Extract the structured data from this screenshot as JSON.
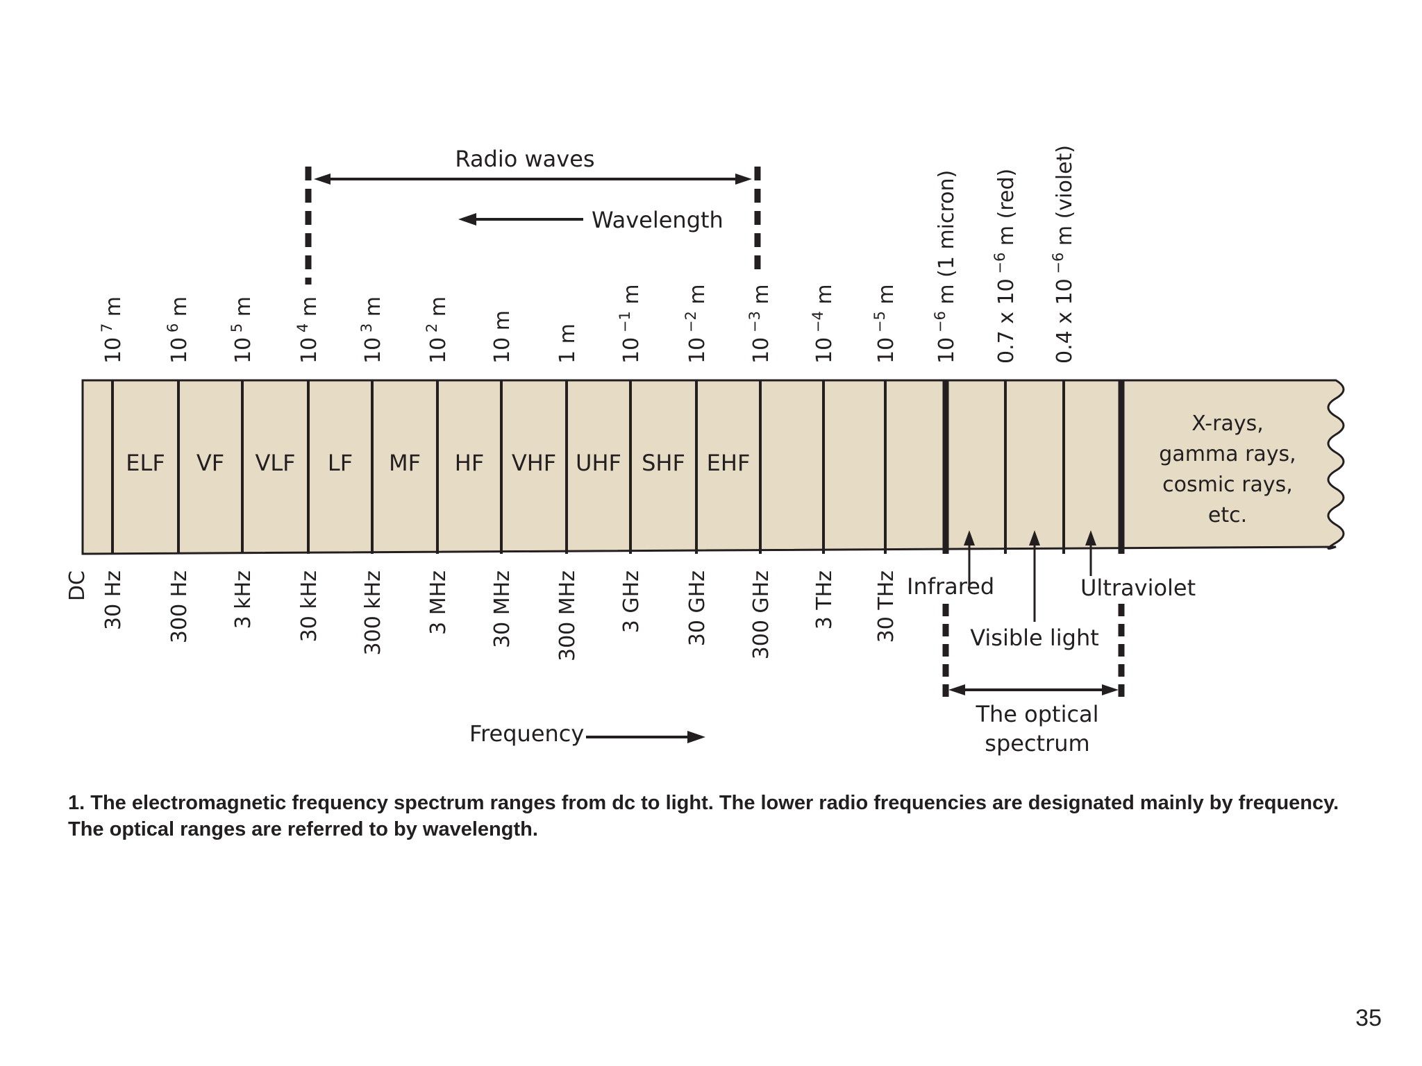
{
  "diagram": {
    "radio_label": "Radio waves",
    "wavelength_label": "Wavelength",
    "frequency_label": "Frequency",
    "wavelength_ticks": [
      {
        "base": "10",
        "exp": "7",
        "unit": " m"
      },
      {
        "base": "10",
        "exp": "6",
        "unit": " m"
      },
      {
        "base": "10",
        "exp": "5",
        "unit": " m"
      },
      {
        "base": "10",
        "exp": "4",
        "unit": " m"
      },
      {
        "base": "10",
        "exp": "3",
        "unit": " m"
      },
      {
        "base": "10",
        "exp": "2",
        "unit": " m"
      },
      {
        "base": "10 m",
        "exp": "",
        "unit": ""
      },
      {
        "base": "1 m",
        "exp": "",
        "unit": ""
      },
      {
        "base": "10",
        "exp": "−1",
        "unit": " m"
      },
      {
        "base": "10",
        "exp": "−2",
        "unit": " m"
      },
      {
        "base": "10",
        "exp": "−3",
        "unit": " m"
      },
      {
        "base": "10",
        "exp": "−4",
        "unit": " m"
      },
      {
        "base": "10",
        "exp": "−5",
        "unit": " m"
      },
      {
        "base": "10",
        "exp": "−6",
        "unit": " m (1 micron)"
      },
      {
        "base": "0.7 x 10",
        "exp": "−6",
        "unit": " m (red)"
      },
      {
        "base": "0.4 x 10",
        "exp": "−6",
        "unit": " m (violet)"
      }
    ],
    "frequency_ticks": [
      "DC",
      "30 Hz",
      "300 Hz",
      "3 kHz",
      "30 kHz",
      "300 kHz",
      "3 MHz",
      "30 MHz",
      "300 MHz",
      "3 GHz",
      "30 GHz",
      "300 GHz",
      "3 THz",
      "30 THz"
    ],
    "bands": [
      "ELF",
      "VF",
      "VLF",
      "LF",
      "MF",
      "HF",
      "VHF",
      "UHF",
      "SHF",
      "EHF"
    ],
    "xray_lines": [
      "X-rays,",
      "gamma rays,",
      "cosmic rays,",
      "etc."
    ],
    "infrared_label": "Infrared",
    "visible_label": "Visible light",
    "ultraviolet_label": "Ultraviolet",
    "optical_lines": [
      "The optical",
      "spectrum"
    ],
    "band_fill": "#e6dbc4",
    "ink_color": "#231f20"
  },
  "caption": "1. The electromagnetic frequency spectrum ranges from dc to light. The lower radio frequencies are designated mainly by frequency. The optical ranges are referred to by wavelength.",
  "page_number": "35"
}
